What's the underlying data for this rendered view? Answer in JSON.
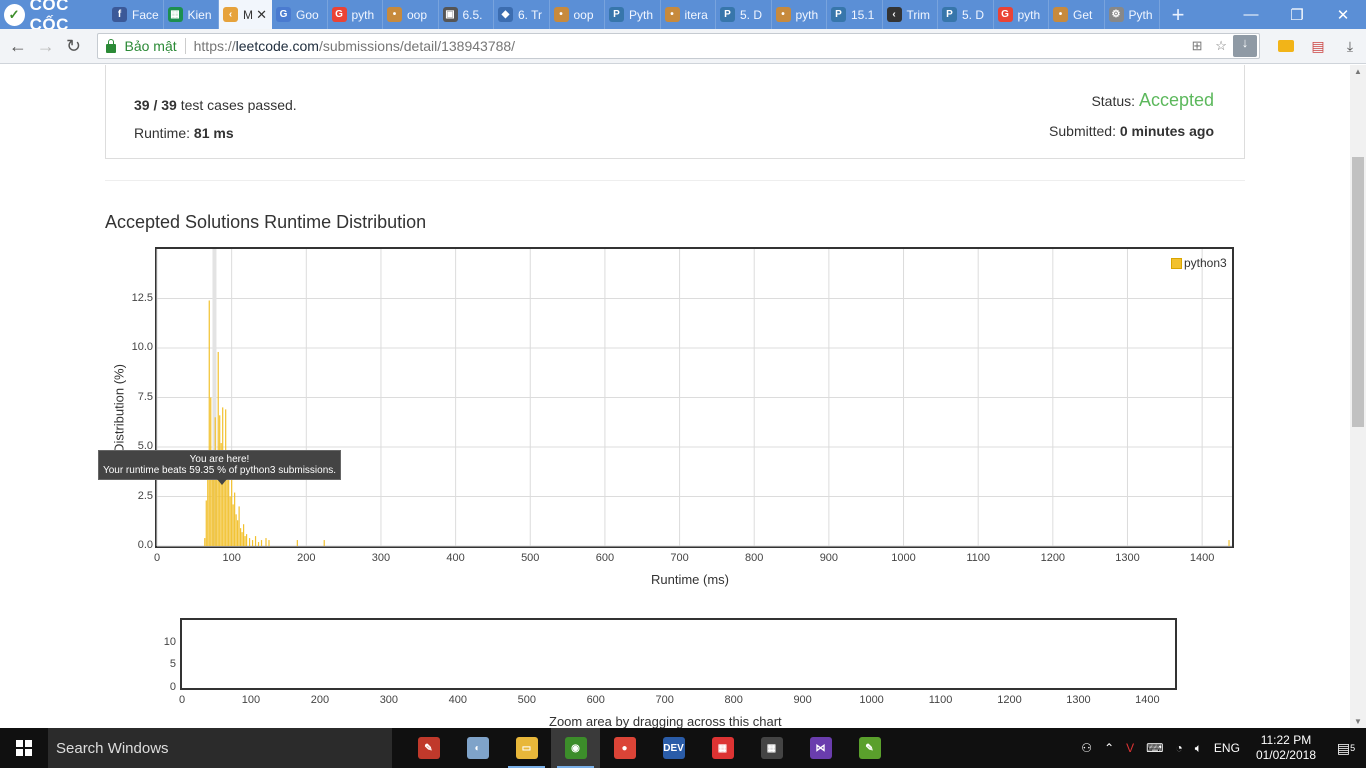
{
  "browser": {
    "brand": "CỐC CỐC",
    "tabs": [
      {
        "label": "Face",
        "color": "#3b5998",
        "glyph": "f"
      },
      {
        "label": "Kien",
        "color": "#1d8f4f",
        "glyph": "▦"
      },
      {
        "label": "M",
        "color": "#e6a23c",
        "glyph": "‹",
        "active": true
      },
      {
        "label": "Goo",
        "color": "#4a7bd0",
        "glyph": "G"
      },
      {
        "label": "pyth",
        "color": "#ea4335",
        "glyph": "G"
      },
      {
        "label": "oop",
        "color": "#c78a3d",
        "glyph": "•"
      },
      {
        "label": "6.5.",
        "color": "#555",
        "glyph": "▣"
      },
      {
        "label": "6. Tr",
        "color": "#3c6db0",
        "glyph": "◆"
      },
      {
        "label": "oop",
        "color": "#c78a3d",
        "glyph": "•"
      },
      {
        "label": "Pyth",
        "color": "#3776ab",
        "glyph": "P"
      },
      {
        "label": "itera",
        "color": "#c78a3d",
        "glyph": "•"
      },
      {
        "label": "5. D",
        "color": "#3776ab",
        "glyph": "P"
      },
      {
        "label": "pyth",
        "color": "#c78a3d",
        "glyph": "•"
      },
      {
        "label": "15.1",
        "color": "#3776ab",
        "glyph": "P"
      },
      {
        "label": "Trim",
        "color": "#333",
        "glyph": "‹"
      },
      {
        "label": "5. D",
        "color": "#3776ab",
        "glyph": "P"
      },
      {
        "label": "pyth",
        "color": "#ea4335",
        "glyph": "G"
      },
      {
        "label": "Get",
        "color": "#c78a3d",
        "glyph": "•"
      },
      {
        "label": "Pyth",
        "color": "#888",
        "glyph": "⚙"
      }
    ],
    "secure_label": "Bảo mật",
    "url_scheme": "https://",
    "url_host": "leetcode.com",
    "url_path": "/submissions/detail/138943788/"
  },
  "submission": {
    "passed": "39",
    "total": "39",
    "passed_suffix": "test cases passed.",
    "runtime_label": "Runtime:",
    "runtime_value": "81 ms",
    "status_label": "Status:",
    "status_value": "Accepted",
    "submitted_label": "Submitted:",
    "submitted_value": "0 minutes ago"
  },
  "section_title": "Accepted Solutions Runtime Distribution",
  "tooltip": {
    "line1": "You are here!",
    "line2": "Your runtime beats 59.35 % of python3 submissions."
  },
  "zoom_hint": "Zoom area by dragging across this chart",
  "chart_data": [
    {
      "type": "bar",
      "xlabel": "Runtime (ms)",
      "ylabel": "Distribution (%)",
      "xlim": [
        0,
        1440
      ],
      "ylim": [
        0,
        15
      ],
      "xticks": [
        "0",
        "100",
        "200",
        "300",
        "400",
        "500",
        "600",
        "700",
        "800",
        "900",
        "1000",
        "1100",
        "1200",
        "1300",
        "1400"
      ],
      "yticks": [
        "0.0",
        "2.5",
        "5.0",
        "7.5",
        "10.0",
        "12.5"
      ],
      "marker_x": 81,
      "series": [
        {
          "name": "python3",
          "color": "#f2c12e",
          "x": [
            64,
            66,
            68,
            70,
            72,
            74,
            76,
            78,
            80,
            82,
            84,
            86,
            88,
            90,
            92,
            94,
            96,
            98,
            100,
            102,
            104,
            106,
            108,
            110,
            112,
            114,
            116,
            118,
            120,
            124,
            128,
            132,
            136,
            140,
            146,
            150,
            188,
            224,
            1436
          ],
          "values": [
            0.4,
            2.3,
            3.9,
            12.4,
            7.5,
            4.5,
            3.9,
            6.5,
            3.4,
            9.8,
            6.6,
            5.2,
            7.0,
            4.7,
            6.9,
            3.5,
            4.5,
            2.5,
            3.4,
            2.1,
            2.7,
            1.6,
            1.3,
            2.0,
            0.9,
            0.7,
            1.1,
            0.5,
            0.6,
            0.4,
            0.3,
            0.5,
            0.2,
            0.3,
            0.4,
            0.3,
            0.3,
            0.3,
            0.3
          ]
        }
      ]
    },
    {
      "type": "bar",
      "xlim": [
        0,
        1440
      ],
      "ylim": [
        0,
        15
      ],
      "xticks": [
        "0",
        "100",
        "200",
        "300",
        "400",
        "500",
        "600",
        "700",
        "800",
        "900",
        "1000",
        "1100",
        "1200",
        "1300",
        "1400"
      ],
      "yticks": [
        "0",
        "5",
        "10"
      ]
    }
  ],
  "taskbar": {
    "search_placeholder": "Search Windows",
    "apps": [
      {
        "name": "paint-icon",
        "color": "#c0392b",
        "glyph": "✎"
      },
      {
        "name": "palette-icon",
        "color": "#7fa3c9",
        "glyph": "◐"
      },
      {
        "name": "file-explorer-icon",
        "color": "#e8b73a",
        "glyph": "▭",
        "running": true
      },
      {
        "name": "coccoc-icon",
        "color": "#3c8d2a",
        "glyph": "◉",
        "active": true,
        "running": true
      },
      {
        "name": "chrome-icon",
        "color": "#db4437",
        "glyph": "●"
      },
      {
        "name": "devcpp-icon",
        "color": "#2a5ca8",
        "glyph": "DEV"
      },
      {
        "name": "apps-grid-icon",
        "color": "#d33",
        "glyph": "▦"
      },
      {
        "name": "calculator-icon",
        "color": "#444",
        "glyph": "▦"
      },
      {
        "name": "visual-studio-icon",
        "color": "#6a3dad",
        "glyph": "⋈"
      },
      {
        "name": "notepad-plus-icon",
        "color": "#5aa02c",
        "glyph": "✎"
      }
    ],
    "language": "ENG",
    "time": "11:22 PM",
    "date": "01/02/2018",
    "notification_count": "5"
  }
}
